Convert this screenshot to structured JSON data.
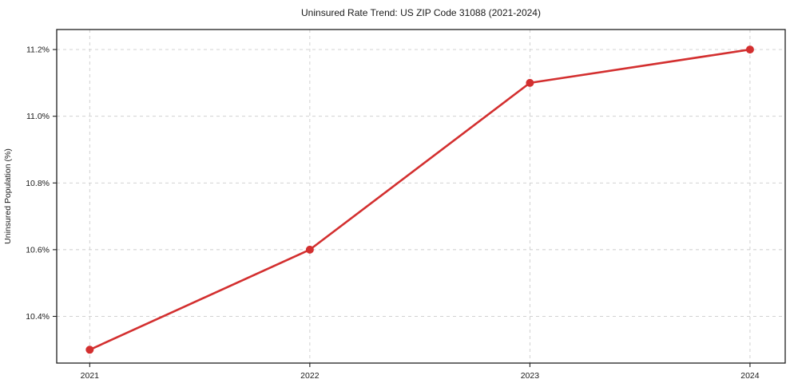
{
  "chart_data": {
    "type": "line",
    "title": "Uninsured Rate Trend: US ZIP Code 31088 (2021-2024)",
    "xlabel": "",
    "ylabel": "Uninsured Population (%)",
    "x": [
      2021,
      2022,
      2023,
      2024
    ],
    "x_tick_labels": [
      "2021",
      "2022",
      "2023",
      "2024"
    ],
    "series": [
      {
        "name": "uninsured-rate",
        "values": [
          10.3,
          10.6,
          11.1,
          11.2
        ],
        "color": "#d32f2f",
        "marker": "circle"
      }
    ],
    "y_ticks": [
      10.4,
      10.6,
      10.8,
      11.0,
      11.2
    ],
    "y_tick_labels": [
      "10.4%",
      "10.6%",
      "10.8%",
      "11.0%",
      "11.2%"
    ],
    "xlim": [
      2020.85,
      2024.16
    ],
    "ylim": [
      10.26,
      11.26
    ],
    "grid": "both",
    "grid_style": "dashed",
    "legend": "none",
    "colors": {
      "grid": "#cccccc",
      "spine": "#1f1f1f",
      "tick": "#1f1f1f",
      "text": "#1a1a1a",
      "background": "#ffffff"
    }
  }
}
